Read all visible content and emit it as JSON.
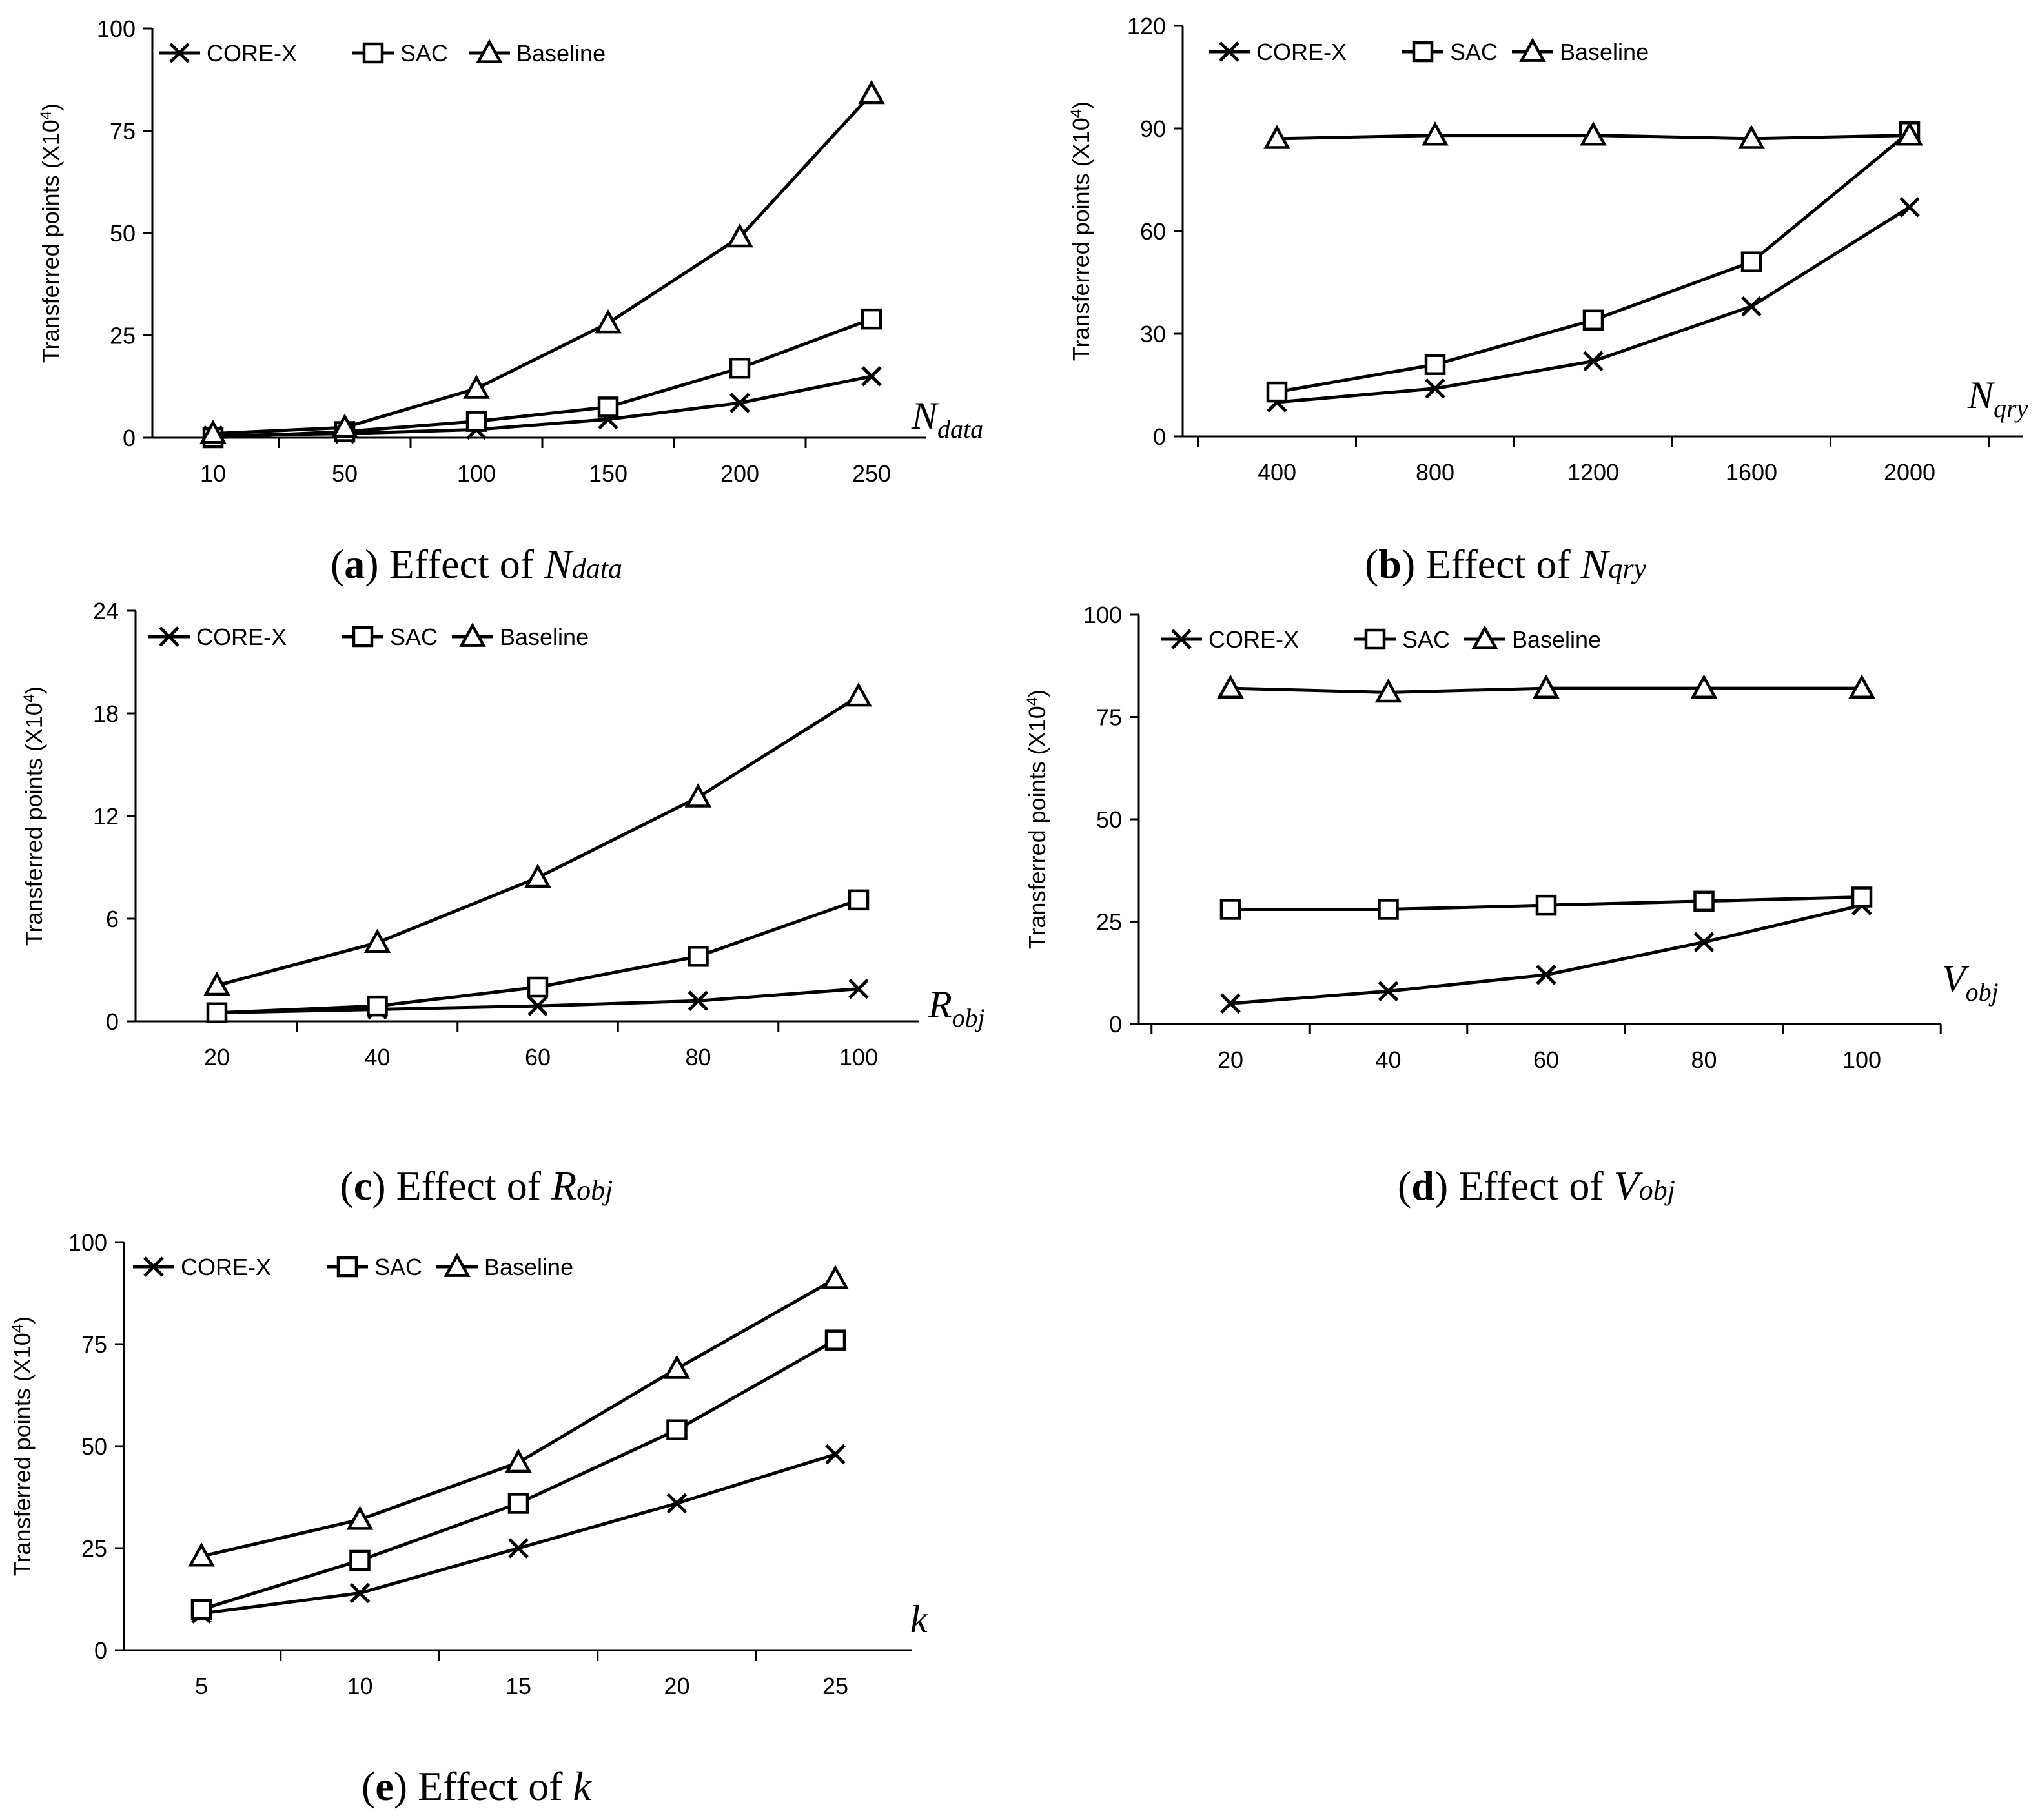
{
  "legend_labels": [
    "CORE-X",
    "SAC",
    "Baseline"
  ],
  "chart_data": [
    {
      "type": "line",
      "caption": {
        "letter": "a",
        "prefix": "Effect of ",
        "var": "N",
        "sub": "data"
      },
      "axis_var": {
        "main": "N",
        "sub": "data"
      },
      "ylabel": "Transferred points (X10⁴)",
      "ylim": [
        0,
        100
      ],
      "yticks": [
        0,
        25,
        50,
        75,
        100
      ],
      "categories": [
        "10",
        "50",
        "100",
        "150",
        "200",
        "250"
      ],
      "series": [
        {
          "name": "CORE-X",
          "marker": "x",
          "values": [
            0.5,
            1,
            2,
            4.5,
            8.5,
            15
          ]
        },
        {
          "name": "SAC",
          "marker": "square",
          "values": [
            0,
            1.5,
            4,
            7.5,
            17,
            29
          ]
        },
        {
          "name": "Baseline",
          "marker": "triangle",
          "values": [
            1,
            2.5,
            12,
            28,
            49,
            84
          ]
        }
      ]
    },
    {
      "type": "line",
      "caption": {
        "letter": "b",
        "prefix": "Effect of ",
        "var": "N",
        "sub": "qry"
      },
      "axis_var": {
        "main": "N",
        "sub": "qry"
      },
      "ylabel": "Transferred points (X10⁴)",
      "ylim": [
        0,
        120
      ],
      "yticks": [
        0,
        30,
        60,
        90,
        120
      ],
      "categories": [
        "400",
        "800",
        "1200",
        "1600",
        "2000"
      ],
      "series": [
        {
          "name": "CORE-X",
          "marker": "x",
          "values": [
            10,
            14,
            22,
            38,
            67
          ]
        },
        {
          "name": "SAC",
          "marker": "square",
          "values": [
            13,
            21,
            34,
            51,
            89
          ]
        },
        {
          "name": "Baseline",
          "marker": "triangle",
          "values": [
            87,
            88,
            88,
            87,
            88
          ]
        }
      ]
    },
    {
      "type": "line",
      "caption": {
        "letter": "c",
        "prefix": "Effect of ",
        "var": "R",
        "sub": "obj"
      },
      "axis_var": {
        "main": "R",
        "sub": "obj"
      },
      "ylabel": "Transferred points (X10⁴)",
      "ylim": [
        0,
        24
      ],
      "yticks": [
        0,
        6,
        12,
        18,
        24
      ],
      "categories": [
        "20",
        "40",
        "60",
        "80",
        "100"
      ],
      "series": [
        {
          "name": "CORE-X",
          "marker": "x",
          "values": [
            0.5,
            0.7,
            0.9,
            1.2,
            1.9
          ]
        },
        {
          "name": "SAC",
          "marker": "square",
          "values": [
            0.5,
            0.9,
            2.0,
            3.8,
            7.1
          ]
        },
        {
          "name": "Baseline",
          "marker": "triangle",
          "values": [
            2.1,
            4.6,
            8.4,
            13.1,
            19.0
          ]
        }
      ]
    },
    {
      "type": "line",
      "caption": {
        "letter": "d",
        "prefix": "Effect of ",
        "var": "V",
        "sub": "obj"
      },
      "axis_var": {
        "main": "V",
        "sub": "obj"
      },
      "ylabel": "Transferred points (X10⁴)",
      "ylim": [
        0,
        100
      ],
      "yticks": [
        0,
        25,
        50,
        75,
        100
      ],
      "categories": [
        "20",
        "40",
        "60",
        "80",
        "100"
      ],
      "series": [
        {
          "name": "CORE-X",
          "marker": "x",
          "values": [
            5,
            8,
            12,
            20,
            29
          ]
        },
        {
          "name": "SAC",
          "marker": "square",
          "values": [
            28,
            28,
            29,
            30,
            31
          ]
        },
        {
          "name": "Baseline",
          "marker": "triangle",
          "values": [
            82,
            81,
            82,
            82,
            82
          ]
        }
      ]
    },
    {
      "type": "line",
      "caption": {
        "letter": "e",
        "prefix": "Effect of ",
        "var": "k",
        "sub": ""
      },
      "axis_var": {
        "main": "k",
        "sub": ""
      },
      "ylabel": "Transferred points (X10⁴)",
      "ylim": [
        0,
        100
      ],
      "yticks": [
        0,
        25,
        50,
        75,
        100
      ],
      "categories": [
        "5",
        "10",
        "15",
        "20",
        "25"
      ],
      "series": [
        {
          "name": "CORE-X",
          "marker": "x",
          "values": [
            9,
            14,
            25,
            36,
            48
          ]
        },
        {
          "name": "SAC",
          "marker": "square",
          "values": [
            10,
            22,
            36,
            54,
            76
          ]
        },
        {
          "name": "Baseline",
          "marker": "triangle",
          "values": [
            23,
            32,
            46,
            69,
            91
          ]
        }
      ]
    }
  ]
}
